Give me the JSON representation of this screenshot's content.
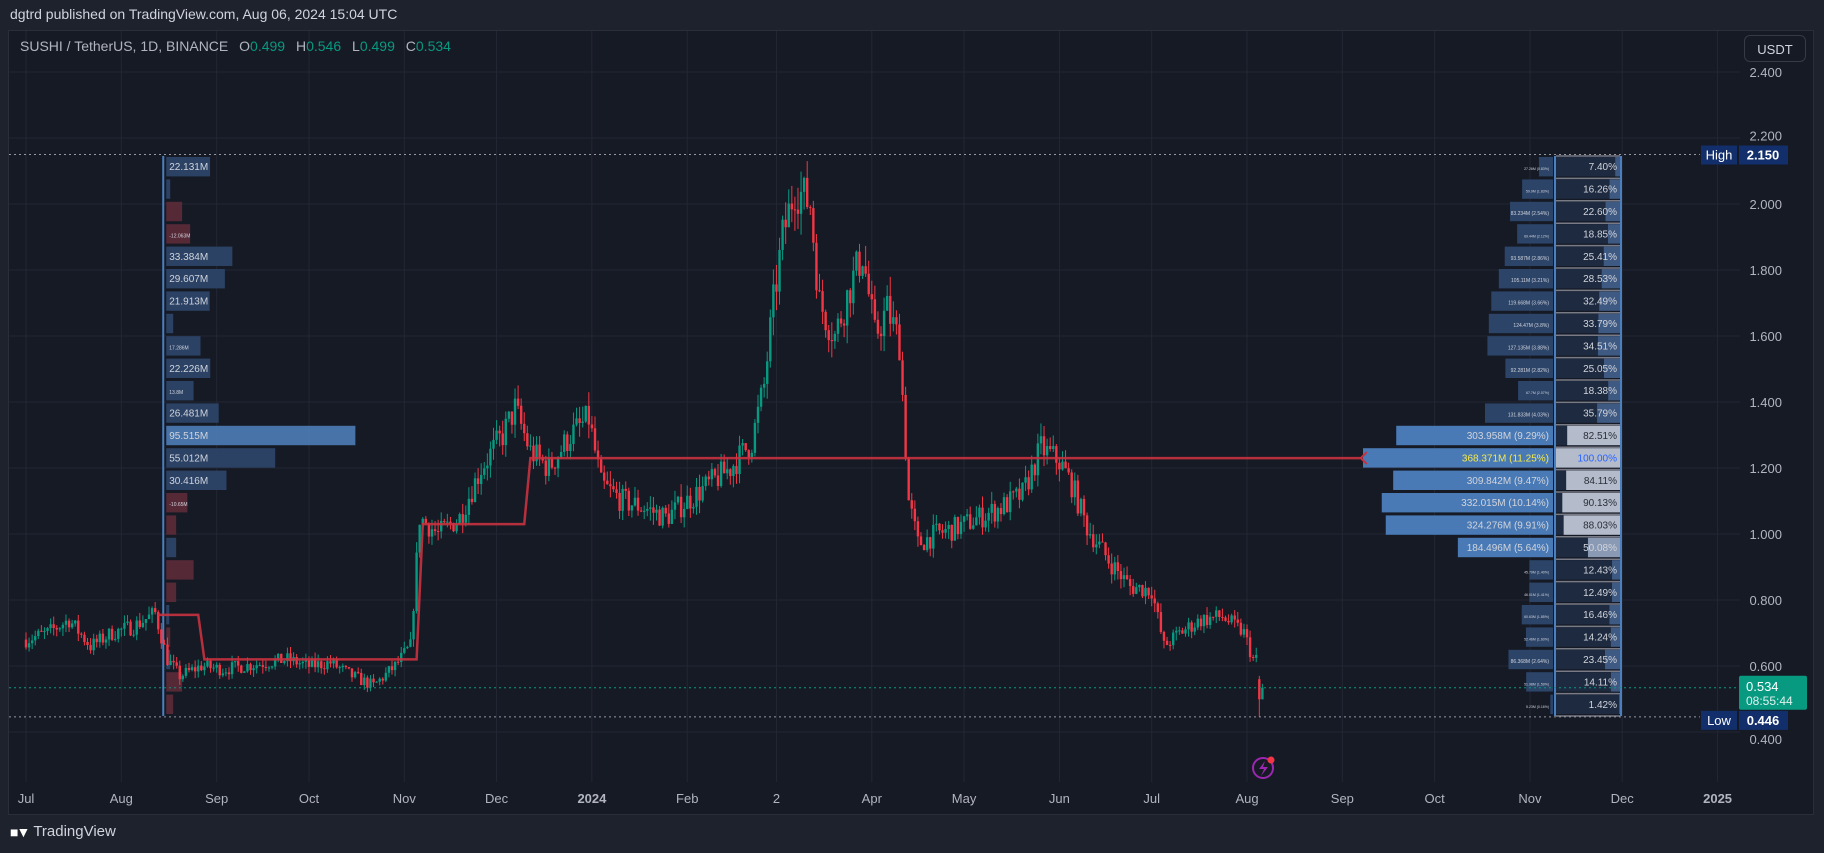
{
  "header": {
    "publisher_line": "dgtrd published on TradingView.com, Aug 06, 2024 15:04 UTC"
  },
  "legend": {
    "symbol": "SUSHI / TetherUS, 1D, BINANCE",
    "o_label": "O",
    "o_value": "0.499",
    "h_label": "H",
    "h_value": "0.546",
    "l_label": "L",
    "l_value": "0.499",
    "c_label": "C",
    "c_value": "0.534"
  },
  "currency_button": "USDT",
  "footer": {
    "logo_mark": "17",
    "brand": "TradingView"
  },
  "colors": {
    "up": "#089981",
    "down": "#f23645",
    "poc_line": "#c8323f",
    "profile_line": "#4a7fc0",
    "label_bg": "#132f6b",
    "price_tag": "#089981",
    "alert_icon": "#9c27b0"
  },
  "icons": {
    "alert": "lightning-alert-icon"
  },
  "chart_data": {
    "type": "candlestick",
    "price_axis": {
      "ticks": [
        "2.400",
        "2.200",
        "2.000",
        "1.800",
        "1.600",
        "1.400",
        "1.200",
        "1.000",
        "0.800",
        "0.600",
        "0.400"
      ],
      "range": [
        0.3,
        2.5
      ]
    },
    "time_axis": {
      "ticks": [
        {
          "label": "Jul",
          "date": "2023-07-01"
        },
        {
          "label": "Aug",
          "date": "2023-08-01"
        },
        {
          "label": "Sep",
          "date": "2023-09-01"
        },
        {
          "label": "Oct",
          "date": "2023-10-01"
        },
        {
          "label": "Nov",
          "date": "2023-11-01"
        },
        {
          "label": "Dec",
          "date": "2023-12-01"
        },
        {
          "label": "2024",
          "date": "2024-01-01",
          "bold": true
        },
        {
          "label": "Feb",
          "date": "2024-02-01"
        },
        {
          "label": "2",
          "date": "2024-03-01"
        },
        {
          "label": "Apr",
          "date": "2024-04-01"
        },
        {
          "label": "May",
          "date": "2024-05-01"
        },
        {
          "label": "Jun",
          "date": "2024-06-01"
        },
        {
          "label": "Jul",
          "date": "2024-07-01"
        },
        {
          "label": "Aug",
          "date": "2024-08-01"
        },
        {
          "label": "Sep",
          "date": "2024-09-01"
        },
        {
          "label": "Oct",
          "date": "2024-10-01"
        },
        {
          "label": "Nov",
          "date": "2024-11-01"
        },
        {
          "label": "Dec",
          "date": "2024-12-01"
        },
        {
          "label": "2025",
          "date": "2025-01-01",
          "bold": true
        }
      ]
    },
    "closes_sampled": [
      [
        "2023-07-01",
        0.68
      ],
      [
        "2023-07-08",
        0.7
      ],
      [
        "2023-07-15",
        0.74
      ],
      [
        "2023-07-22",
        0.66
      ],
      [
        "2023-07-29",
        0.7
      ],
      [
        "2023-08-05",
        0.72
      ],
      [
        "2023-08-12",
        0.76
      ],
      [
        "2023-08-16",
        0.62
      ],
      [
        "2023-08-20",
        0.57
      ],
      [
        "2023-08-27",
        0.6
      ],
      [
        "2023-09-03",
        0.59
      ],
      [
        "2023-09-10",
        0.6
      ],
      [
        "2023-09-17",
        0.61
      ],
      [
        "2023-09-24",
        0.62
      ],
      [
        "2023-10-01",
        0.6
      ],
      [
        "2023-10-08",
        0.61
      ],
      [
        "2023-10-15",
        0.57
      ],
      [
        "2023-10-22",
        0.54
      ],
      [
        "2023-10-29",
        0.6
      ],
      [
        "2023-11-03",
        0.66
      ],
      [
        "2023-11-06",
        1.05
      ],
      [
        "2023-11-12",
        1.0
      ],
      [
        "2023-11-19",
        1.05
      ],
      [
        "2023-11-26",
        1.2
      ],
      [
        "2023-12-03",
        1.3
      ],
      [
        "2023-12-07",
        1.38
      ],
      [
        "2023-12-12",
        1.25
      ],
      [
        "2023-12-18",
        1.2
      ],
      [
        "2023-12-25",
        1.3
      ],
      [
        "2023-12-31",
        1.35
      ],
      [
        "2024-01-04",
        1.15
      ],
      [
        "2024-01-11",
        1.1
      ],
      [
        "2024-01-18",
        1.08
      ],
      [
        "2024-01-25",
        1.05
      ],
      [
        "2024-02-01",
        1.1
      ],
      [
        "2024-02-08",
        1.15
      ],
      [
        "2024-02-15",
        1.2
      ],
      [
        "2024-02-22",
        1.28
      ],
      [
        "2024-02-26",
        1.45
      ],
      [
        "2024-02-29",
        1.7
      ],
      [
        "2024-03-03",
        1.9
      ],
      [
        "2024-03-07",
        2.05
      ],
      [
        "2024-03-12",
        2.0
      ],
      [
        "2024-03-15",
        1.7
      ],
      [
        "2024-03-20",
        1.6
      ],
      [
        "2024-03-25",
        1.75
      ],
      [
        "2024-03-29",
        1.85
      ],
      [
        "2024-04-02",
        1.6
      ],
      [
        "2024-04-06",
        1.68
      ],
      [
        "2024-04-10",
        1.58
      ],
      [
        "2024-04-13",
        1.1
      ],
      [
        "2024-04-16",
        0.97
      ],
      [
        "2024-04-22",
        1.0
      ],
      [
        "2024-04-29",
        1.02
      ],
      [
        "2024-05-06",
        1.05
      ],
      [
        "2024-05-13",
        1.08
      ],
      [
        "2024-05-20",
        1.12
      ],
      [
        "2024-05-26",
        1.26
      ],
      [
        "2024-06-01",
        1.22
      ],
      [
        "2024-06-05",
        1.15
      ],
      [
        "2024-06-10",
        1.02
      ],
      [
        "2024-06-17",
        0.92
      ],
      [
        "2024-06-24",
        0.84
      ],
      [
        "2024-07-01",
        0.83
      ],
      [
        "2024-07-05",
        0.66
      ],
      [
        "2024-07-10",
        0.7
      ],
      [
        "2024-07-17",
        0.74
      ],
      [
        "2024-07-24",
        0.75
      ],
      [
        "2024-07-31",
        0.7
      ],
      [
        "2024-08-03",
        0.62
      ]
    ],
    "last_candles": [
      {
        "date": "2024-08-05",
        "open": 0.56,
        "high": 0.57,
        "low": 0.446,
        "close": 0.499
      },
      {
        "date": "2024-08-06",
        "open": 0.499,
        "high": 0.546,
        "low": 0.499,
        "close": 0.534
      }
    ],
    "high": {
      "label": "High",
      "value": "2.150"
    },
    "low": {
      "label": "Low",
      "value": "0.446"
    },
    "last_price": {
      "value": "0.534",
      "countdown": "08:55:44"
    },
    "poc_line": [
      [
        "2023-08-13",
        0.755
      ],
      [
        "2023-08-26",
        0.755
      ],
      [
        "2023-08-28",
        0.62
      ],
      [
        "2023-11-05",
        0.62
      ],
      [
        "2023-11-07",
        1.03
      ],
      [
        "2023-12-10",
        1.03
      ],
      [
        "2023-12-12",
        1.23
      ],
      [
        "2024-09-07",
        1.23
      ]
    ],
    "left_profile": {
      "anchor_date": "2023-08-13",
      "rows": [
        {
          "value": 22.131,
          "label": "22.131M"
        },
        {
          "value": 2,
          "label": ""
        },
        {
          "value": -8,
          "label": ""
        },
        {
          "value": -12.063,
          "label": "-12.063M"
        },
        {
          "value": 33.384,
          "label": "33.384M"
        },
        {
          "value": 29.607,
          "label": "29.607M"
        },
        {
          "value": 21.913,
          "label": "21.913M"
        },
        {
          "value": 3.5,
          "label": ""
        },
        {
          "value": 17.286,
          "label": "17.286M"
        },
        {
          "value": 22.226,
          "label": "22.226M"
        },
        {
          "value": 13.8,
          "label": "13.8M"
        },
        {
          "value": 26.481,
          "label": "26.481M"
        },
        {
          "value": 95.515,
          "label": "95.515M",
          "poc": true
        },
        {
          "value": 55.012,
          "label": "55.012M"
        },
        {
          "value": 30.416,
          "label": "30.416M"
        },
        {
          "value": -10.65,
          "label": "-10.65M"
        },
        {
          "value": -5,
          "label": ""
        },
        {
          "value": 5,
          "label": ""
        },
        {
          "value": -13.8,
          "label": ""
        },
        {
          "value": -5,
          "label": ""
        },
        {
          "value": 0,
          "label": ""
        },
        {
          "value": -2,
          "label": ""
        },
        {
          "value": 2,
          "label": ""
        },
        {
          "value": -8,
          "label": ""
        },
        {
          "value": -3.5,
          "label": ""
        }
      ]
    },
    "right_profile": {
      "rows": [
        {
          "label": "27.26M (0.83%)",
          "pct": 7.4,
          "pct_label": "7.40%"
        },
        {
          "label": "59.9M (1.83%)",
          "pct": 16.26,
          "pct_label": "16.26%"
        },
        {
          "label": "83.234M (2.54%)",
          "pct": 22.6,
          "pct_label": "22.60%"
        },
        {
          "label": "69.44M (2.12%)",
          "pct": 18.85,
          "pct_label": "18.85%"
        },
        {
          "label": "93.587M (2.86%)",
          "pct": 25.41,
          "pct_label": "25.41%"
        },
        {
          "label": "105.11M (3.21%)",
          "pct": 28.53,
          "pct_label": "28.53%"
        },
        {
          "label": "119.668M (3.66%)",
          "pct": 32.49,
          "pct_label": "32.49%"
        },
        {
          "label": "124.47M (3.8%)",
          "pct": 33.79,
          "pct_label": "33.79%"
        },
        {
          "label": "127.135M (3.88%)",
          "pct": 34.51,
          "pct_label": "34.51%"
        },
        {
          "label": "92.281M (2.82%)",
          "pct": 25.05,
          "pct_label": "25.05%"
        },
        {
          "label": "67.7M (2.07%)",
          "pct": 18.38,
          "pct_label": "18.38%"
        },
        {
          "label": "131.833M (4.03%)",
          "pct": 35.79,
          "pct_label": "35.79%"
        },
        {
          "label": "303.958M (9.29%)",
          "pct": 82.51,
          "pct_label": "82.51%",
          "value_area": true
        },
        {
          "label": "368.371M (11.25%)",
          "pct": 100.0,
          "pct_label": "100.00%",
          "value_area": true,
          "poc": true
        },
        {
          "label": "309.842M (9.47%)",
          "pct": 84.11,
          "pct_label": "84.11%",
          "value_area": true
        },
        {
          "label": "332.015M (10.14%)",
          "pct": 90.13,
          "pct_label": "90.13%",
          "value_area": true
        },
        {
          "label": "324.276M (9.91%)",
          "pct": 88.03,
          "pct_label": "88.03%",
          "value_area": true
        },
        {
          "label": "184.496M (5.64%)",
          "pct": 50.08,
          "pct_label": "50.08%",
          "value_area": true
        },
        {
          "label": "45.79M (1.40%)",
          "pct": 12.43,
          "pct_label": "12.43%"
        },
        {
          "label": "46.01M (1.41%)",
          "pct": 12.49,
          "pct_label": "12.49%"
        },
        {
          "label": "60.63M (1.85%)",
          "pct": 16.46,
          "pct_label": "16.46%"
        },
        {
          "label": "52.46M (1.60%)",
          "pct": 14.24,
          "pct_label": "14.24%"
        },
        {
          "label": "86.368M (2.64%)",
          "pct": 23.45,
          "pct_label": "23.45%"
        },
        {
          "label": "51.98M (1.59%)",
          "pct": 14.11,
          "pct_label": "14.11%"
        },
        {
          "label": "5.23M (0.16%)",
          "pct": 1.42,
          "pct_label": "1.42%"
        }
      ]
    }
  }
}
